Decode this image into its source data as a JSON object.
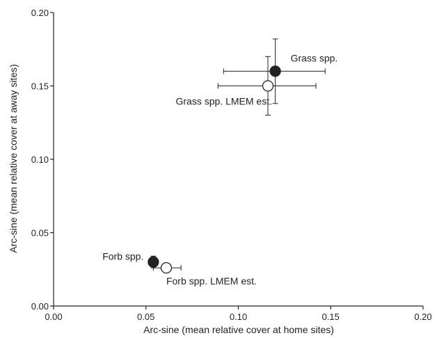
{
  "chart_data": {
    "type": "scatter",
    "xlabel": "Arc-sine (mean relative cover at home sites)",
    "ylabel": "Arc-sine (mean relative cover at away sites)",
    "xlim": [
      0.0,
      0.2
    ],
    "ylim": [
      0.0,
      0.2
    ],
    "x_ticks": [
      0.0,
      0.05,
      0.1,
      0.15,
      0.2
    ],
    "y_ticks": [
      0.0,
      0.05,
      0.1,
      0.15,
      0.2
    ],
    "x_tick_labels": [
      "0.00",
      "0.05",
      "0.10",
      "0.15",
      "0.20"
    ],
    "y_tick_labels": [
      "0.00",
      "0.05",
      "0.10",
      "0.15",
      "0.20"
    ],
    "grid": false,
    "points": [
      {
        "label": "Grass spp.",
        "x": 0.12,
        "y": 0.16,
        "x_err": [
          0.092,
          0.147
        ],
        "y_err": [
          0.138,
          0.182
        ],
        "marker": "filled-circle",
        "label_side": "right"
      },
      {
        "label": "Grass spp. LMEM est.",
        "x": 0.116,
        "y": 0.15,
        "x_err": [
          0.089,
          0.142
        ],
        "y_err": [
          0.13,
          0.17
        ],
        "marker": "open-circle",
        "label_side": "below-left"
      },
      {
        "label": "Forb spp.",
        "x": 0.054,
        "y": 0.03,
        "x_err": [
          0.052,
          0.056
        ],
        "y_err": [
          0.026,
          0.034
        ],
        "marker": "filled-circle",
        "label_side": "left"
      },
      {
        "label": "Forb spp. LMEM est.",
        "x": 0.061,
        "y": 0.026,
        "x_err": [
          0.054,
          0.069
        ],
        "y_err": [
          0.024,
          0.028
        ],
        "marker": "open-circle",
        "label_side": "below-right"
      }
    ],
    "colors": {
      "filled_marker": "#222222",
      "open_marker_fill": "#ffffff",
      "axis": "#222222"
    }
  }
}
